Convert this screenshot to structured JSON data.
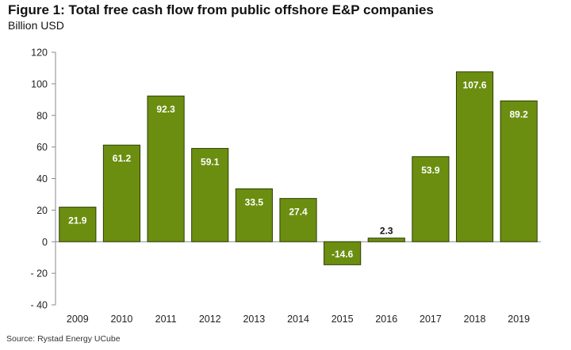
{
  "title": "Figure 1: Total free cash flow from public offshore E&P companies",
  "subtitle": "Billion USD",
  "source": "Source: Rystad Energy UCube",
  "colors": {
    "bar": "#6b8e10",
    "bar_stroke": "#2f3f05",
    "label_in_bar": "#ffffff",
    "label_outside": "#111111",
    "axis": "#8a8a8a"
  },
  "chart_data": {
    "type": "bar",
    "categories": [
      "2009",
      "2010",
      "2011",
      "2012",
      "2013",
      "2014",
      "2015",
      "2016",
      "2017",
      "2018",
      "2019"
    ],
    "values": [
      21.9,
      61.2,
      92.3,
      59.1,
      33.5,
      27.4,
      -14.6,
      2.3,
      53.9,
      107.6,
      89.2
    ],
    "data_labels": [
      "21.9",
      "61.2",
      "92.3",
      "59.1",
      "33.5",
      "27.4",
      "-14.6",
      "2.3",
      "53.9",
      "107.6",
      "89.2"
    ],
    "ylim": [
      -40,
      120
    ],
    "yticks": [
      -40,
      -20,
      0,
      20,
      40,
      60,
      80,
      100,
      120
    ],
    "ytick_labels": [
      "- 40",
      "- 20",
      "0",
      "20",
      "40",
      "60",
      "80",
      "100",
      "120"
    ],
    "grid": false,
    "legend": "none"
  }
}
